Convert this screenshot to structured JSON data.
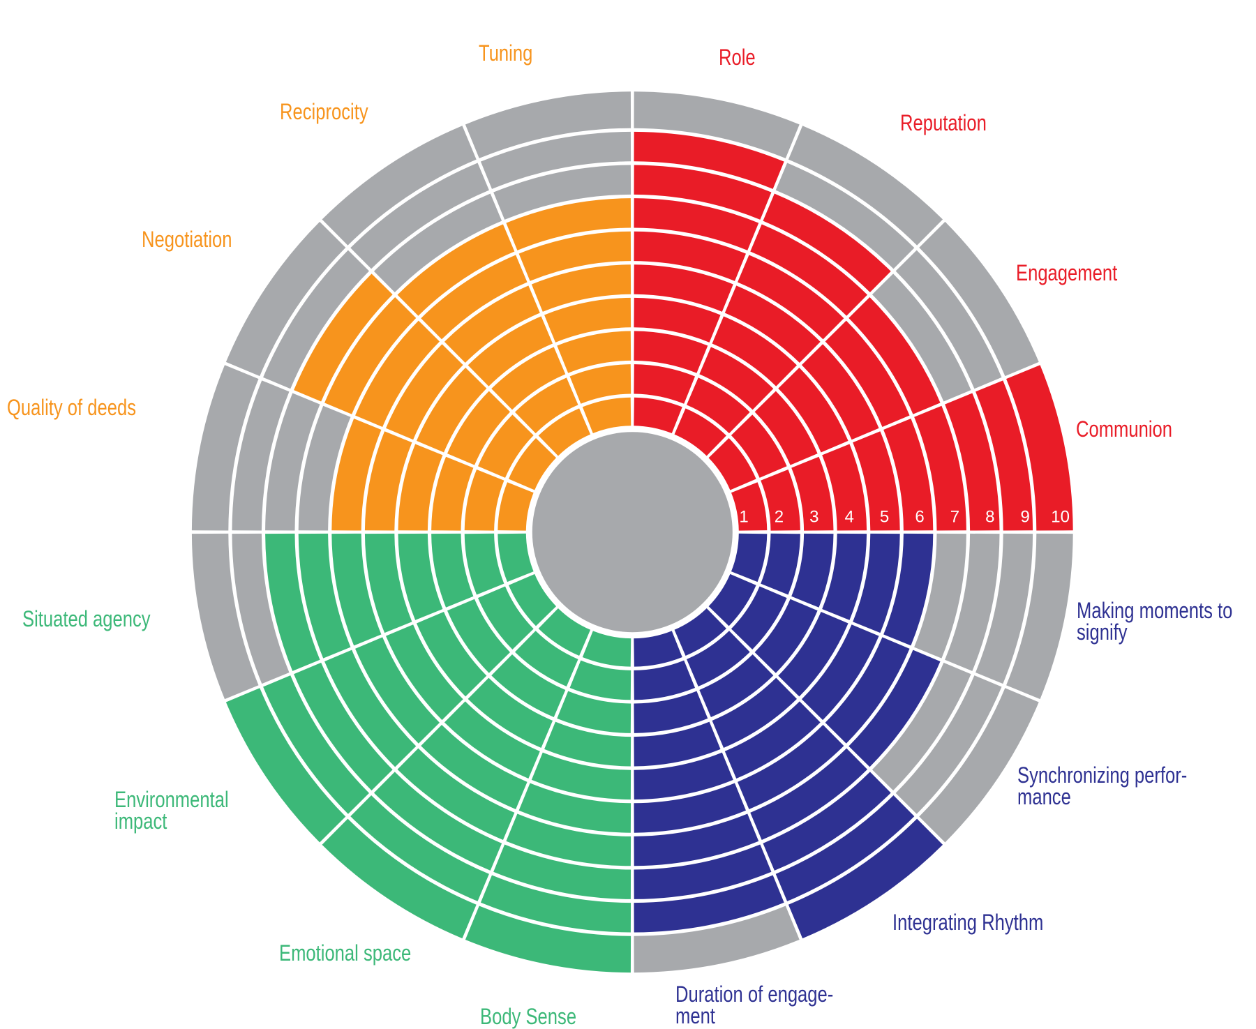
{
  "chart_data": {
    "type": "bar",
    "coordinate_system": "polar",
    "variant": "sector-wheel-assessment",
    "title": "",
    "scale": {
      "min": 0,
      "max": 10,
      "ring_labels": [
        "1",
        "2",
        "3",
        "4",
        "5",
        "6",
        "7",
        "8",
        "9",
        "10"
      ],
      "ring_label_color": "#ffffff"
    },
    "unfilled_color": "#a7a9ac",
    "center_disc_color": "#a7a9ac",
    "background_color": "#ffffff",
    "quadrants": {
      "red": {
        "color": "#e91c27"
      },
      "blue": {
        "color": "#2e3192"
      },
      "green": {
        "color": "#3cb878"
      },
      "orange": {
        "color": "#f7941d"
      }
    },
    "sectors": [
      {
        "id": "role",
        "label": "Role",
        "quadrant": "red",
        "value": 9
      },
      {
        "id": "reputation",
        "label": "Reputation",
        "quadrant": "red",
        "value": 8
      },
      {
        "id": "engagement",
        "label": "Engagement",
        "quadrant": "red",
        "value": 7
      },
      {
        "id": "communion",
        "label": "Communion",
        "quadrant": "red",
        "value": 10
      },
      {
        "id": "making-moments",
        "label": "Making moments to\nsignify",
        "quadrant": "blue",
        "value": 6
      },
      {
        "id": "synchronizing",
        "label": "Synchronizing perfor-\nmance",
        "quadrant": "blue",
        "value": 7
      },
      {
        "id": "integrating",
        "label": "Integrating Rhythm",
        "quadrant": "blue",
        "value": 10
      },
      {
        "id": "duration",
        "label": "Duration of engage-\nment",
        "quadrant": "blue",
        "value": 9
      },
      {
        "id": "body-sense",
        "label": "Body Sense",
        "quadrant": "green",
        "value": 10
      },
      {
        "id": "emotional",
        "label": "Emotional space",
        "quadrant": "green",
        "value": 10
      },
      {
        "id": "environmental",
        "label": "Environmental\nimpact",
        "quadrant": "green",
        "value": 10
      },
      {
        "id": "situated",
        "label": "Situated agency",
        "quadrant": "green",
        "value": 8
      },
      {
        "id": "quality",
        "label": "Quality of deeds",
        "quadrant": "orange",
        "value": 6
      },
      {
        "id": "negotiation",
        "label": "Negotiation",
        "quadrant": "orange",
        "value": 8
      },
      {
        "id": "reciprocity",
        "label": "Reciprocity",
        "quadrant": "orange",
        "value": 7
      },
      {
        "id": "tuning",
        "label": "Tuning",
        "quadrant": "orange",
        "value": 7
      }
    ]
  }
}
